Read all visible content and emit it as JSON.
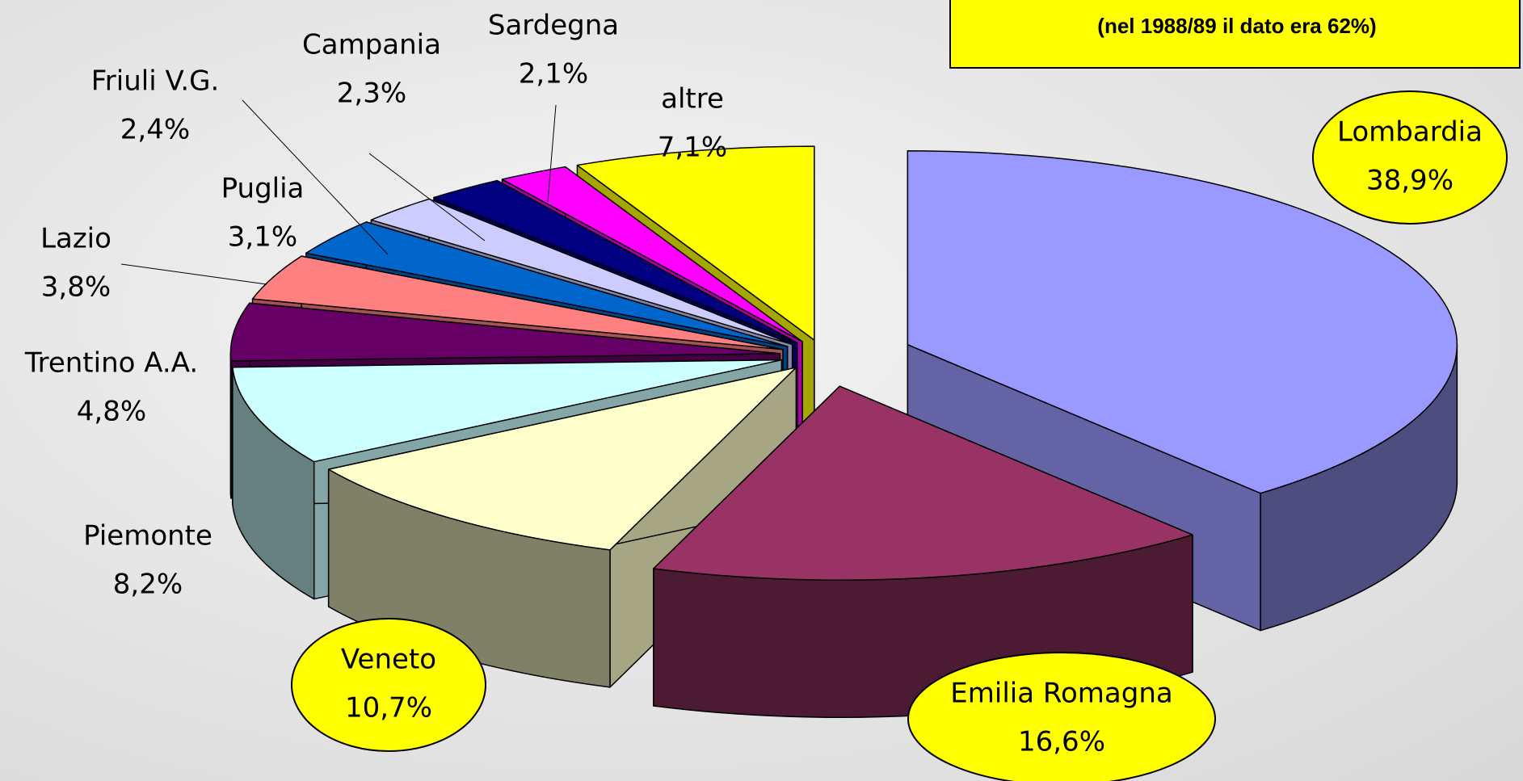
{
  "chart_data": {
    "type": "pie3d",
    "annotation": "(nel 1988/89 il dato era 62%)",
    "categories": [
      "Lombardia",
      "Emilia Romagna",
      "Veneto",
      "Piemonte",
      "Trentino A.A.",
      "Lazio",
      "Puglia",
      "Friuli V.G.",
      "Campania",
      "Sardegna",
      "altre"
    ],
    "values": [
      38.9,
      16.6,
      10.7,
      8.2,
      4.8,
      3.8,
      3.1,
      2.4,
      2.3,
      2.1,
      7.1
    ],
    "value_labels": [
      "38,9%",
      "16,6%",
      "10,7%",
      "8,2%",
      "4,8%",
      "3,8%",
      "3,1%",
      "2,4%",
      "2,3%",
      "2,1%",
      "7,1%"
    ],
    "colors": [
      "#9999ff",
      "#993366",
      "#ffffcc",
      "#ccffff",
      "#660066",
      "#ff8080",
      "#0066cc",
      "#ccccff",
      "#000080",
      "#ff00ff",
      "#ffff00"
    ]
  }
}
